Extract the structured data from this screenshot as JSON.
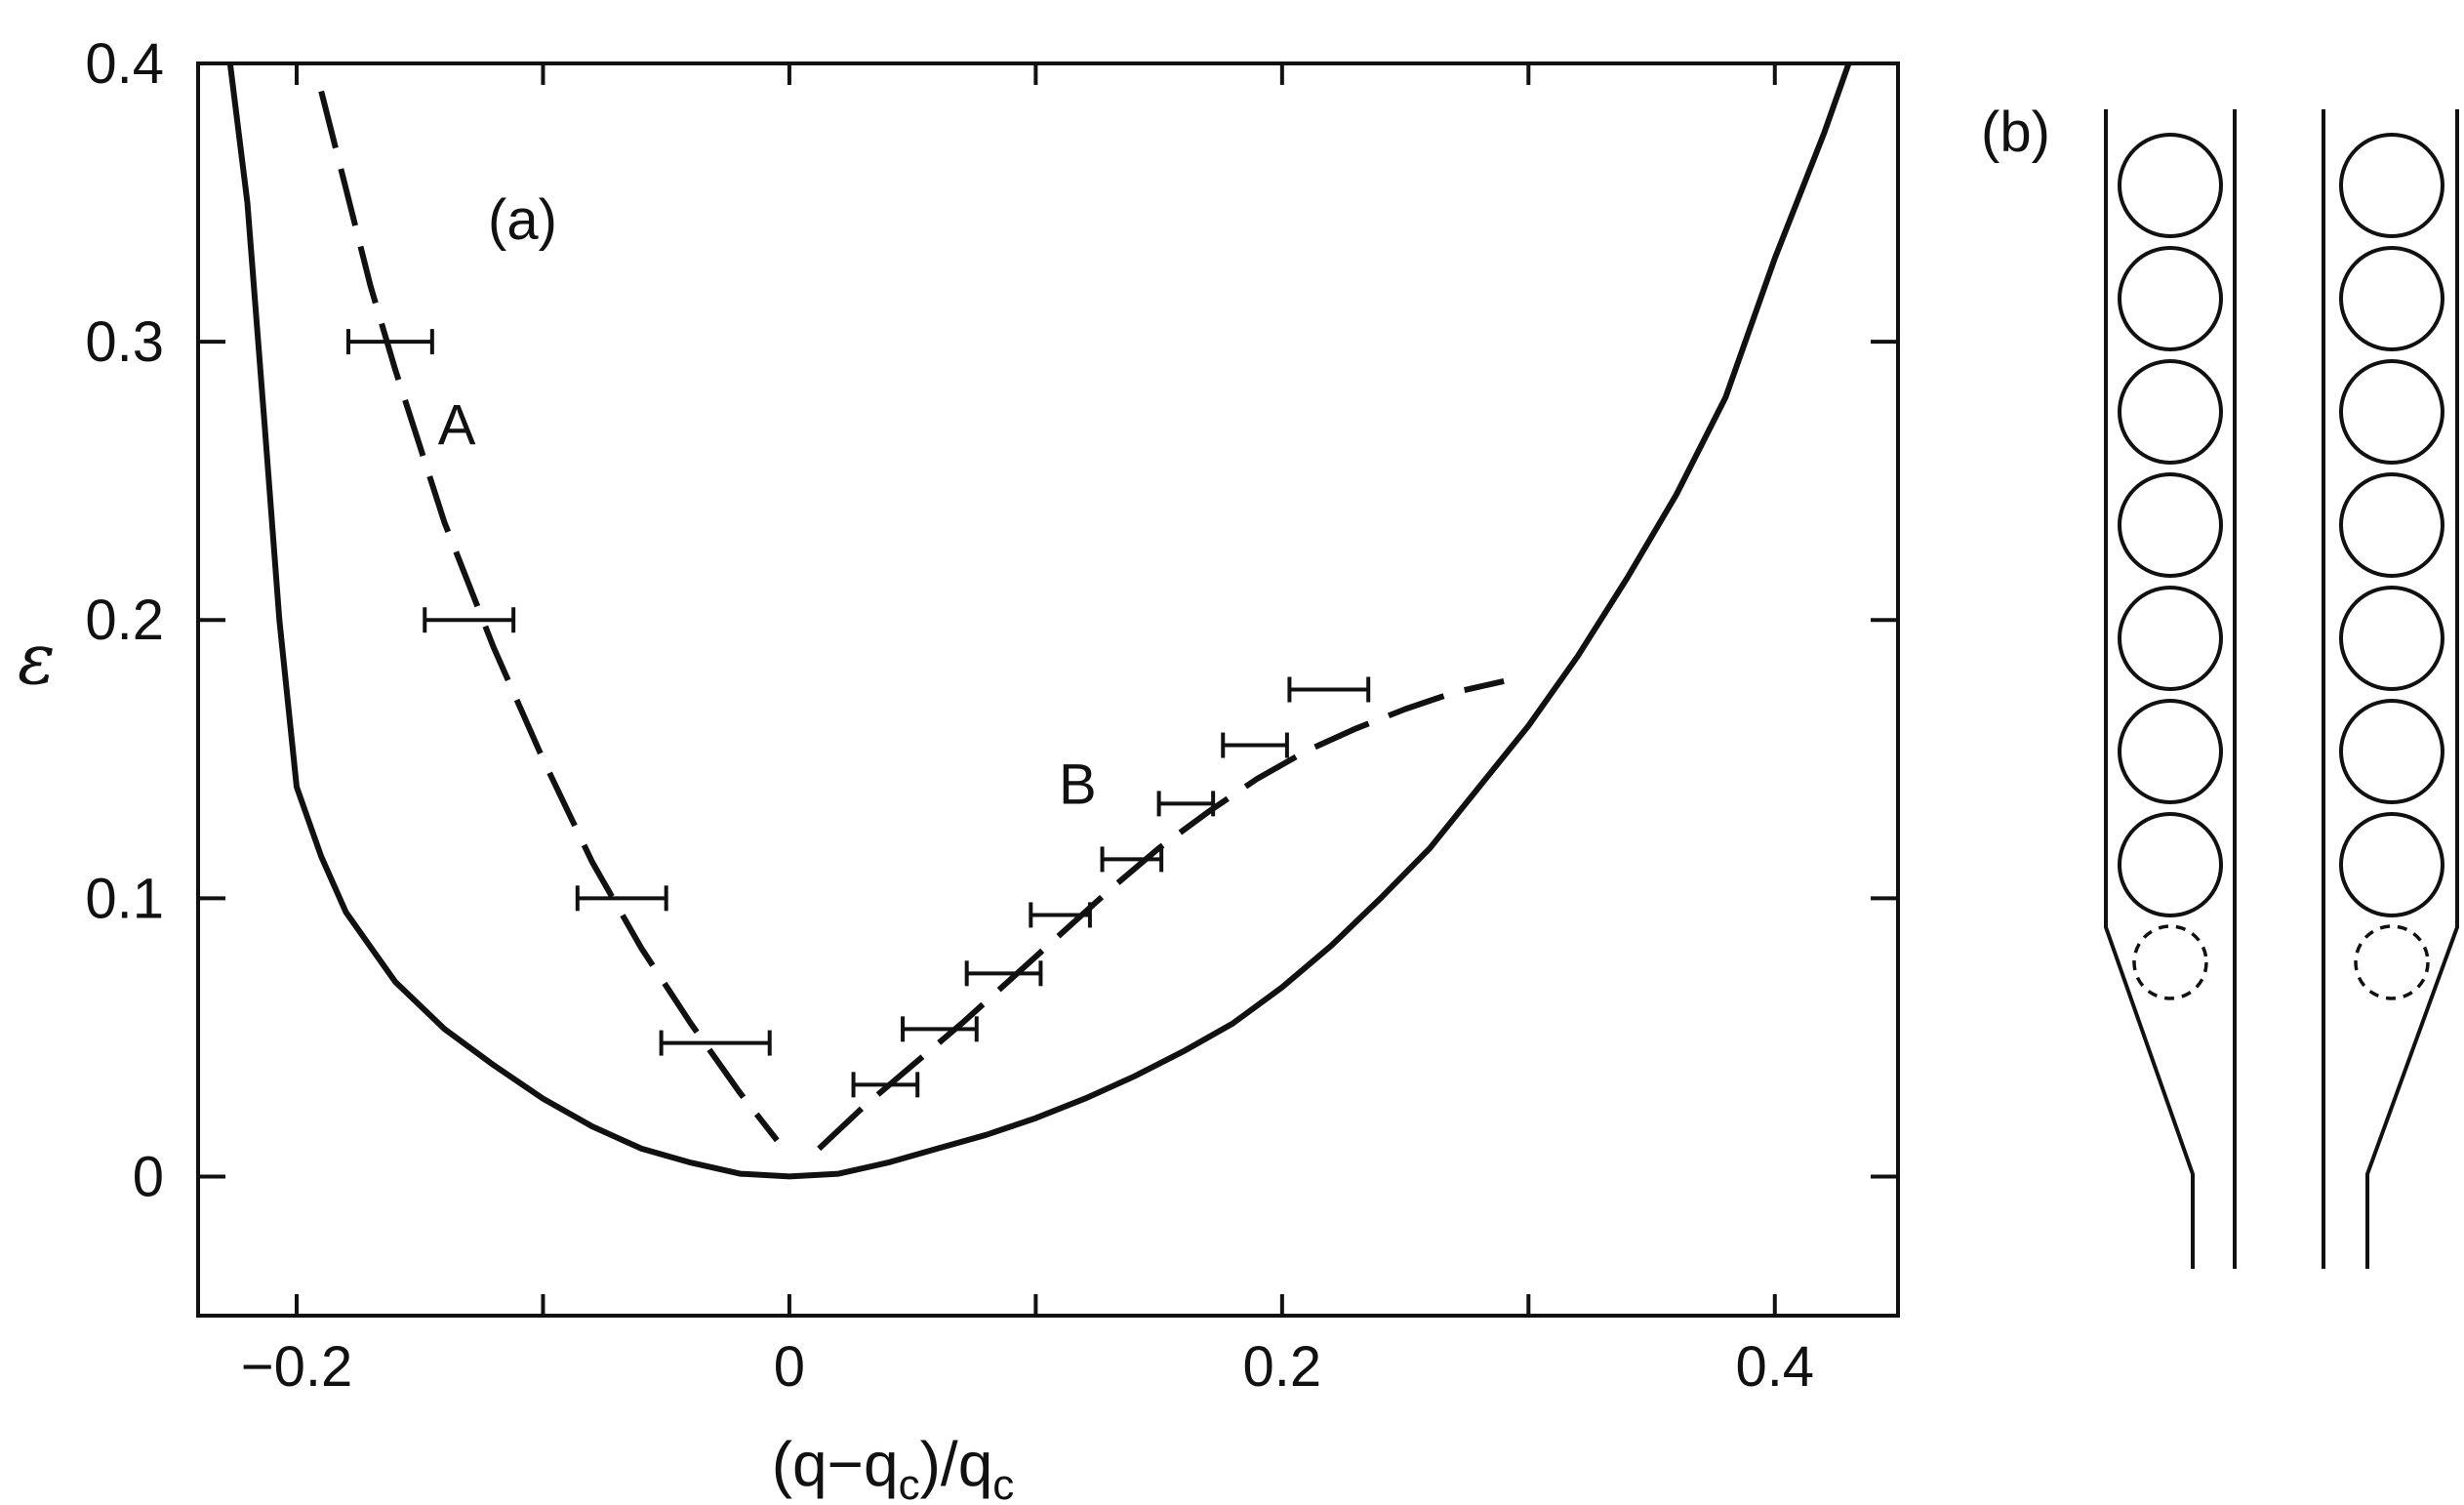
{
  "chart_data": {
    "type": "line",
    "panel_label": "(a)",
    "xlabel": "(q−q",
    "xlabel_sub1": "c",
    "xlabel_mid": ")/q",
    "xlabel_sub2": "c",
    "ylabel": "ε",
    "xlim": [
      -0.24,
      0.45
    ],
    "ylim": [
      -0.05,
      0.4
    ],
    "xticks": [
      -0.2,
      0,
      0.2,
      0.4
    ],
    "xtick_labels": [
      "−0.2",
      "0",
      "0.2",
      "0.4"
    ],
    "yticks": [
      0,
      0.1,
      0.2,
      0.3,
      0.4
    ],
    "ytick_labels": [
      "0",
      "0.1",
      "0.2",
      "0.3",
      "0.4"
    ],
    "grid": false,
    "series": [
      {
        "style": "solid",
        "x": [
          -0.227,
          -0.22,
          -0.213,
          -0.207,
          -0.2,
          -0.19,
          -0.18,
          -0.16,
          -0.14,
          -0.12,
          -0.1,
          -0.08,
          -0.06,
          -0.04,
          -0.02,
          0,
          0.02,
          0.04,
          0.06,
          0.08,
          0.1,
          0.12,
          0.14,
          0.16,
          0.18,
          0.2,
          0.22,
          0.24,
          0.26,
          0.28,
          0.3,
          0.32,
          0.34,
          0.36,
          0.38,
          0.4,
          0.42,
          0.43
        ],
        "y": [
          0.4,
          0.35,
          0.27,
          0.2,
          0.14,
          0.115,
          0.095,
          0.07,
          0.053,
          0.04,
          0.028,
          0.018,
          0.01,
          0.005,
          0.001,
          0,
          0.001,
          0.005,
          0.01,
          0.015,
          0.021,
          0.028,
          0.036,
          0.045,
          0.055,
          0.068,
          0.083,
          0.1,
          0.118,
          0.14,
          0.162,
          0.187,
          0.215,
          0.245,
          0.28,
          0.33,
          0.375,
          0.4
        ]
      },
      {
        "name": "A",
        "style": "dashed",
        "x": [
          -0.19,
          -0.18,
          -0.17,
          -0.16,
          -0.14,
          -0.12,
          -0.1,
          -0.08,
          -0.06,
          -0.04,
          -0.02,
          -0.005
        ],
        "y": [
          0.39,
          0.355,
          0.32,
          0.29,
          0.235,
          0.19,
          0.15,
          0.113,
          0.082,
          0.055,
          0.03,
          0.013
        ]
      },
      {
        "name": "B",
        "style": "dashed",
        "x": [
          0.012,
          0.03,
          0.05,
          0.07,
          0.09,
          0.11,
          0.13,
          0.15,
          0.17,
          0.19,
          0.21,
          0.23,
          0.25,
          0.27,
          0.29
        ],
        "y": [
          0.01,
          0.025,
          0.04,
          0.055,
          0.071,
          0.087,
          0.103,
          0.118,
          0.131,
          0.143,
          0.153,
          0.161,
          0.168,
          0.174,
          0.178
        ]
      }
    ],
    "error_bars": [
      {
        "group": "A",
        "x": -0.162,
        "y": 0.3,
        "xerr": 0.017
      },
      {
        "group": "A",
        "x": -0.13,
        "y": 0.2,
        "xerr": 0.018
      },
      {
        "group": "A",
        "x": -0.068,
        "y": 0.1,
        "xerr": 0.018
      },
      {
        "group": "A",
        "x": -0.03,
        "y": 0.048,
        "xerr": 0.022
      },
      {
        "group": "B",
        "x": 0.039,
        "y": 0.033,
        "xerr": 0.013
      },
      {
        "group": "B",
        "x": 0.061,
        "y": 0.053,
        "xerr": 0.015
      },
      {
        "group": "B",
        "x": 0.087,
        "y": 0.073,
        "xerr": 0.015
      },
      {
        "group": "B",
        "x": 0.11,
        "y": 0.094,
        "xerr": 0.012
      },
      {
        "group": "B",
        "x": 0.139,
        "y": 0.114,
        "xerr": 0.012
      },
      {
        "group": "B",
        "x": 0.161,
        "y": 0.134,
        "xerr": 0.011
      },
      {
        "group": "B",
        "x": 0.189,
        "y": 0.155,
        "xerr": 0.013
      },
      {
        "group": "B",
        "x": 0.219,
        "y": 0.175,
        "xerr": 0.016
      }
    ],
    "curve_labels": [
      {
        "text": "A",
        "x": -0.135,
        "y": 0.27
      },
      {
        "text": "B",
        "x": 0.117,
        "y": 0.141
      }
    ]
  },
  "diagram": {
    "panel_label": "(b)",
    "columns": 2,
    "solid_circles_per_column": 7,
    "dashed_circles_per_column": 1
  }
}
